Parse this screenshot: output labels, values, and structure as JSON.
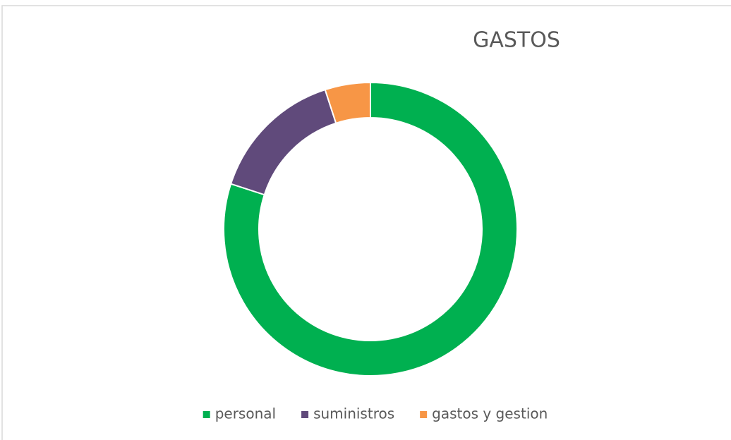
{
  "chart_data": {
    "type": "donut",
    "title": "GASTOS",
    "categories": [
      "personal",
      "suministros",
      "gastos y gestion"
    ],
    "values": [
      80,
      15,
      5
    ],
    "colors": [
      "#00b050",
      "#604a7b",
      "#f79646"
    ],
    "legend": "bottom"
  }
}
